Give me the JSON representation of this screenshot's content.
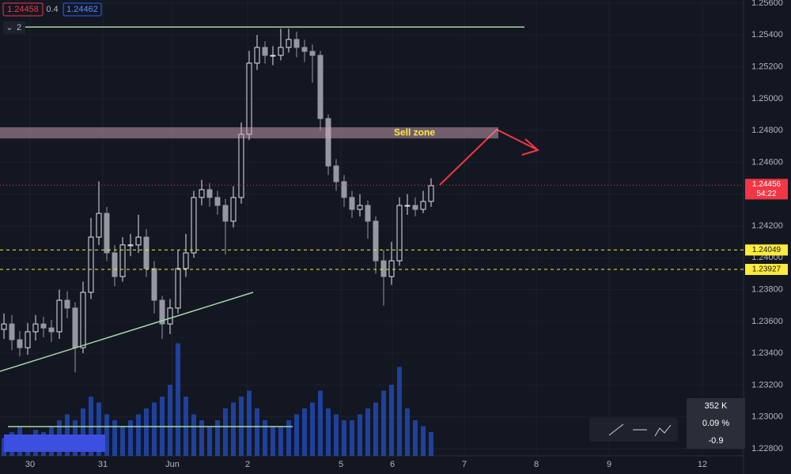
{
  "chart_data": {
    "type": "candlestick",
    "header": {
      "bid": "1.24458",
      "spread": "0.4",
      "ask": "1.24462",
      "indicator": "2"
    },
    "stats": [
      "352 K",
      "0.09 %",
      "-0.9"
    ],
    "annotation": "Sell zone",
    "open": [
      1.2355,
      1.23584,
      1.23485,
      1.23435,
      1.23535,
      1.23584,
      1.23559,
      1.23535,
      1.23733,
      1.23684,
      1.23435,
      1.23783,
      1.2413,
      1.24279,
      1.24031,
      1.23882,
      1.24081,
      1.24081,
      1.2413,
      1.23932,
      1.23733,
      1.23584,
      1.23684,
      1.23932,
      1.24031,
      1.24379,
      1.24428,
      1.24379,
      1.24329,
      1.2423,
      1.24379,
      1.24776,
      1.25223,
      1.25322,
      1.25272,
      1.25272,
      1.25322,
      1.25372,
      1.25322,
      1.25297,
      1.25272,
      1.24875,
      1.24577,
      1.24478,
      1.24379,
      1.24304,
      1.24329,
      1.2423,
      1.23981,
      1.23882,
      1.23981,
      1.24329,
      1.24329,
      1.24304,
      1.24354
    ],
    "high": [
      1.2365,
      1.2364,
      1.2354,
      1.2359,
      1.2364,
      1.2363,
      1.2361,
      1.238,
      1.2379,
      1.2372,
      1.2385,
      1.2425,
      1.2448,
      1.2432,
      1.2408,
      1.2413,
      1.2415,
      1.2427,
      1.2418,
      1.2398,
      1.2376,
      1.2374,
      1.2405,
      1.2415,
      1.2442,
      1.2449,
      1.2447,
      1.2442,
      1.2437,
      1.2445,
      1.2485,
      1.253,
      1.254,
      1.2536,
      1.2533,
      1.2544,
      1.2544,
      1.2542,
      1.2537,
      1.2534,
      1.253,
      1.249,
      1.2462,
      1.2452,
      1.2442,
      1.244,
      1.2436,
      1.2426,
      1.2405,
      1.241,
      1.2438,
      1.244,
      1.2438,
      1.2442,
      1.245
    ],
    "low": [
      1.2349,
      1.2342,
      1.2338,
      1.2339,
      1.2348,
      1.235,
      1.2347,
      1.2349,
      1.2362,
      1.2328,
      1.234,
      1.2374,
      1.2408,
      1.2398,
      1.2382,
      1.2385,
      1.2401,
      1.2403,
      1.2388,
      1.2365,
      1.2349,
      1.2352,
      1.2365,
      1.2388,
      1.24,
      1.2433,
      1.2432,
      1.2427,
      1.2402,
      1.2419,
      1.2434,
      1.2474,
      1.2518,
      1.2522,
      1.2521,
      1.2524,
      1.2529,
      1.2526,
      1.2523,
      1.251,
      1.248,
      1.2452,
      1.2442,
      1.2432,
      1.2425,
      1.2426,
      1.2412,
      1.239,
      1.237,
      1.2383,
      1.2395,
      1.2427,
      1.2426,
      1.2428,
      1.2432
    ],
    "close": [
      1.23584,
      1.23485,
      1.23435,
      1.23535,
      1.23584,
      1.23559,
      1.23535,
      1.23733,
      1.23684,
      1.23435,
      1.23783,
      1.2413,
      1.24279,
      1.24031,
      1.23882,
      1.24081,
      1.24081,
      1.2413,
      1.23932,
      1.23733,
      1.23584,
      1.23684,
      1.23932,
      1.24031,
      1.24379,
      1.24428,
      1.24379,
      1.24329,
      1.2423,
      1.24379,
      1.24776,
      1.25223,
      1.25322,
      1.25272,
      1.25272,
      1.25322,
      1.25372,
      1.25322,
      1.25297,
      1.25272,
      1.24875,
      1.24577,
      1.24478,
      1.24379,
      1.24304,
      1.24329,
      1.2423,
      1.23981,
      1.23882,
      1.23981,
      1.24329,
      1.24329,
      1.24304,
      1.24354,
      1.24453
    ],
    "volume": [
      15,
      20,
      25,
      18,
      22,
      20,
      25,
      30,
      35,
      30,
      40,
      50,
      45,
      35,
      30,
      25,
      30,
      35,
      40,
      45,
      50,
      60,
      95,
      50,
      35,
      30,
      25,
      30,
      40,
      45,
      50,
      55,
      40,
      30,
      25,
      25,
      30,
      35,
      40,
      45,
      55,
      40,
      35,
      30,
      30,
      35,
      40,
      45,
      55,
      60,
      75,
      40,
      30,
      25,
      20
    ],
    "volume_lim": [
      0,
      100
    ],
    "up_color": "#e0e3eb",
    "down_color": "#9598a1",
    "volume_color": "#2962ff",
    "xlim": [
      -0.5,
      93.5
    ],
    "xticks": [
      {
        "value": 3.3,
        "label": "30"
      },
      {
        "value": 12.5,
        "label": "31"
      },
      {
        "value": 21.3,
        "label": "Jun"
      },
      {
        "value": 30.8,
        "label": "2"
      },
      {
        "value": 42.6,
        "label": "5"
      },
      {
        "value": 49.1,
        "label": "6"
      },
      {
        "value": 58.2,
        "label": "7"
      },
      {
        "value": 67.3,
        "label": "8"
      },
      {
        "value": 76.5,
        "label": "9"
      },
      {
        "value": 88.3,
        "label": "12"
      }
    ],
    "ylim": [
      1.228,
      1.256
    ],
    "yticks": [
      {
        "value": 1.256,
        "label": "1.25600"
      },
      {
        "value": 1.254,
        "label": "1.25400"
      },
      {
        "value": 1.252,
        "label": "1.25200"
      },
      {
        "value": 1.25,
        "label": "1.25000"
      },
      {
        "value": 1.248,
        "label": "1.24800"
      },
      {
        "value": 1.246,
        "label": "1.24600"
      },
      {
        "value": 1.244,
        "label": "1.24400"
      },
      {
        "value": 1.242,
        "label": "1.24200"
      },
      {
        "value": 1.24,
        "label": "1.24000"
      },
      {
        "value": 1.238,
        "label": "1.23800"
      },
      {
        "value": 1.236,
        "label": "1.23600"
      },
      {
        "value": 1.234,
        "label": "1.23400"
      },
      {
        "value": 1.232,
        "label": "1.23200"
      },
      {
        "value": 1.23,
        "label": "1.23000"
      },
      {
        "value": 1.228,
        "label": "1.22800"
      }
    ],
    "grid": true,
    "resistance": 1.2545,
    "sell_zone": [
      1.2475,
      1.2482
    ],
    "current_price": {
      "value": 1.24456,
      "label": "1.24456"
    },
    "countdown": "54:22",
    "levels": [
      {
        "value": 1.24049,
        "label": "1.24049"
      },
      {
        "value": 1.23927,
        "label": "1.23927"
      }
    ]
  }
}
